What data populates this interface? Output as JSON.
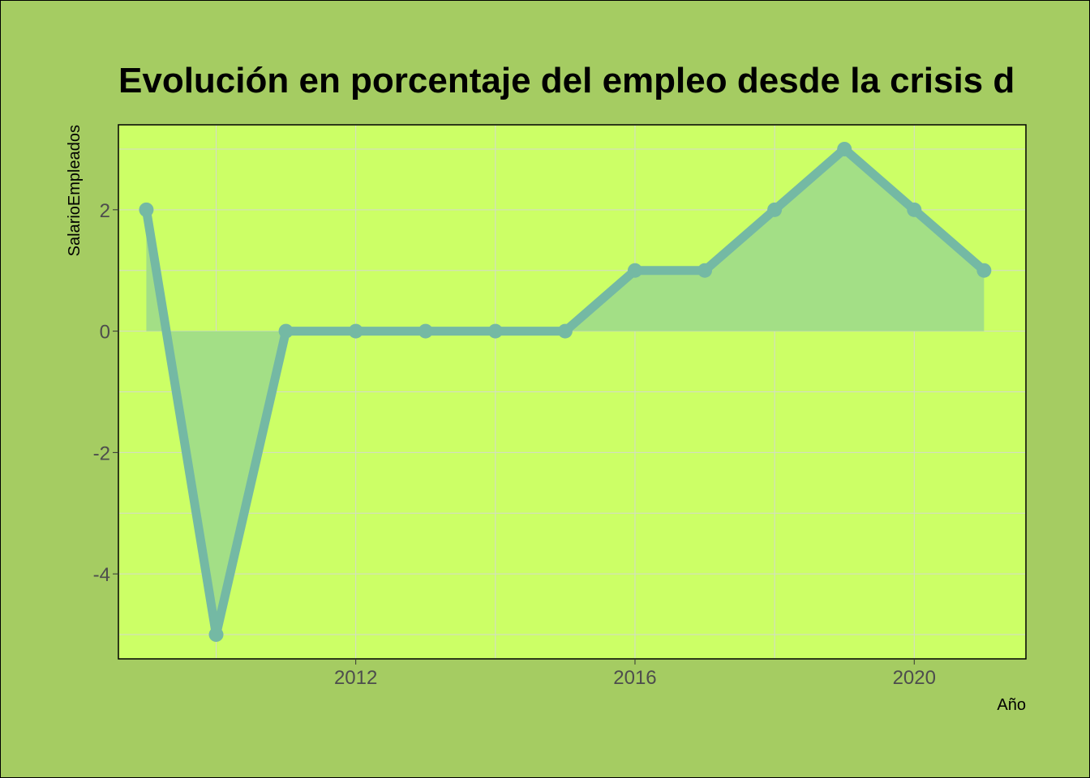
{
  "chart_data": {
    "type": "area",
    "title": "Evolución en porcentaje del empleo desde la crisis d",
    "xlabel": "Año",
    "ylabel": "SalarioEmpleados",
    "x": [
      2009,
      2010,
      2011,
      2012,
      2013,
      2014,
      2015,
      2016,
      2017,
      2018,
      2019,
      2020,
      2021
    ],
    "values": [
      2,
      -5,
      0,
      0,
      0,
      0,
      0,
      1,
      1,
      2,
      3,
      2,
      1
    ],
    "xlim": [
      2008.6,
      2021.6
    ],
    "ylim": [
      -5.4,
      3.4
    ],
    "x_ticks": [
      2012,
      2016,
      2020
    ],
    "x_minor_ticks": [
      2010,
      2014,
      2018
    ],
    "y_ticks": [
      -4,
      -2,
      0,
      2
    ],
    "y_minor_ticks": [
      -5,
      -3,
      -1,
      1,
      3
    ],
    "x_tick_labels": [
      "2012",
      "2016",
      "2020"
    ],
    "y_tick_labels": [
      "-4",
      "-2",
      "0",
      "2"
    ],
    "grid": true,
    "colors": {
      "page_background": "#a5cc62",
      "panel_background": "#ccff66",
      "line": "#74b9a4",
      "area_fill": "#a3df86",
      "grid": "#d4d9cc"
    }
  }
}
